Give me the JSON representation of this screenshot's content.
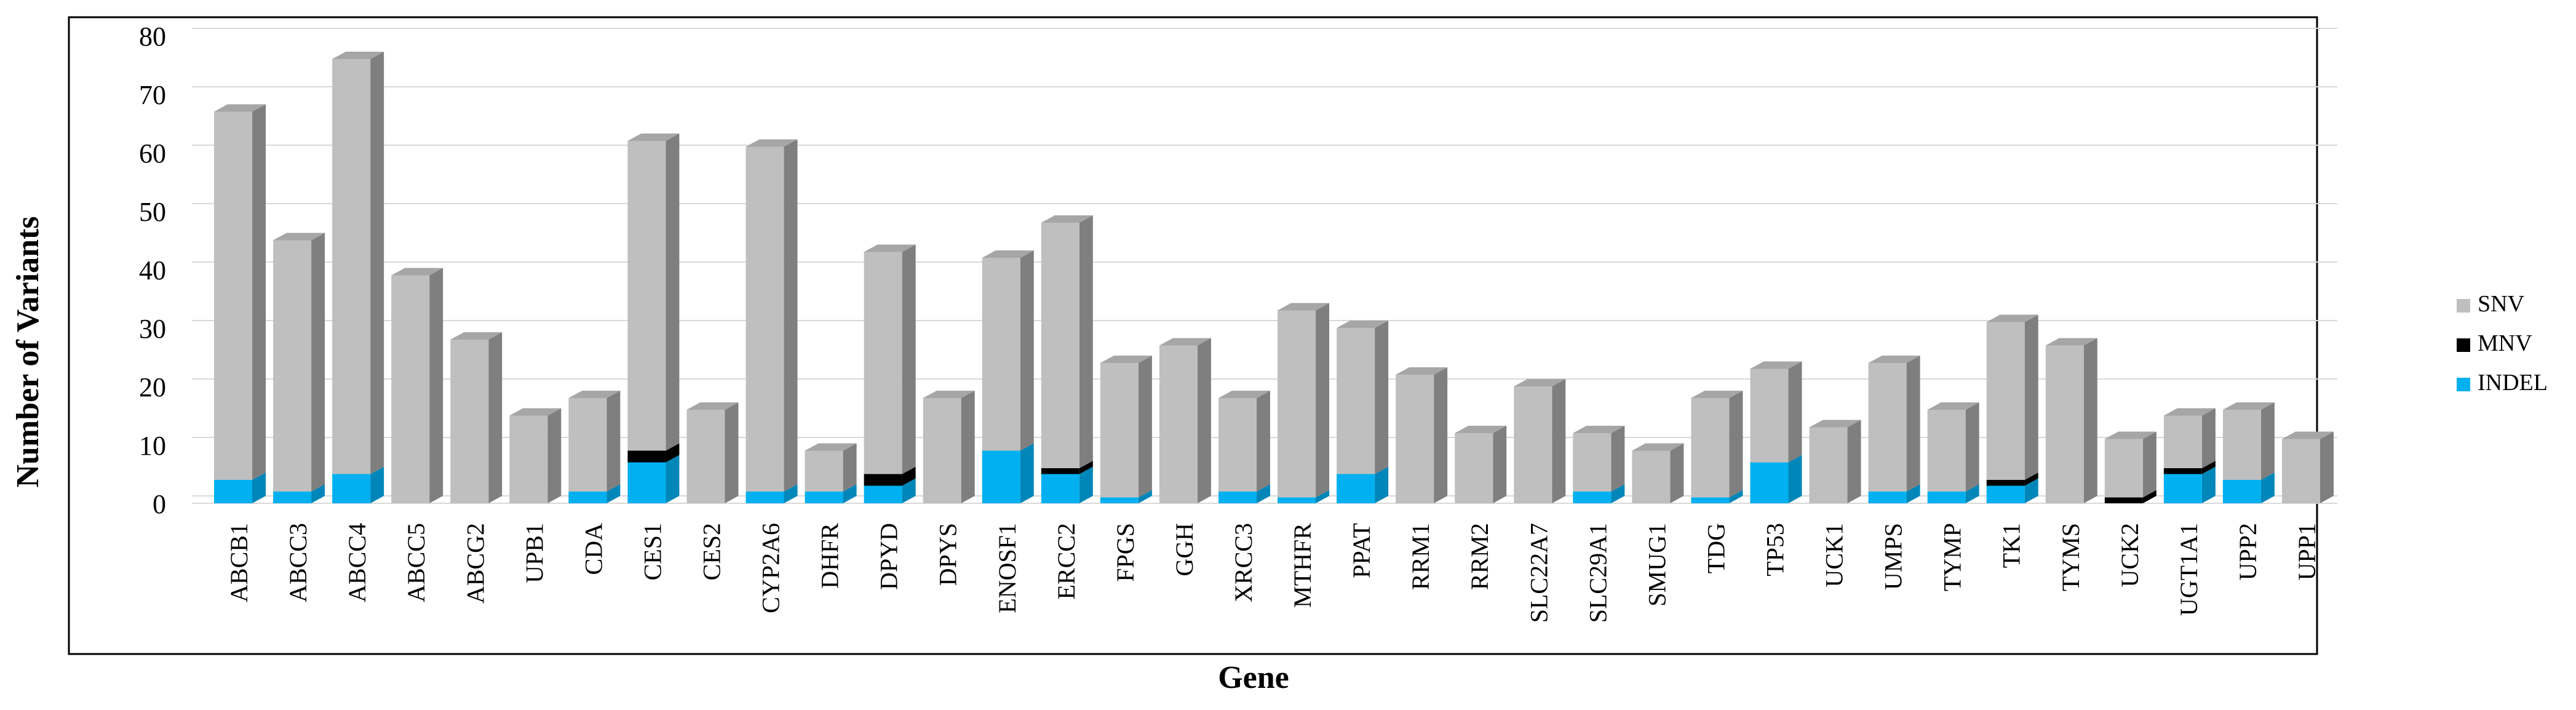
{
  "chart_data": {
    "type": "bar",
    "stacked": true,
    "style": "3d-column",
    "title": "",
    "xlabel": "Gene",
    "ylabel": "Number of Variants",
    "ylim": [
      0,
      80
    ],
    "yticks": [
      0,
      10,
      20,
      30,
      40,
      50,
      60,
      70,
      80
    ],
    "grid": true,
    "legend_position": "right",
    "categories": [
      "ABCB1",
      "ABCC3",
      "ABCC4",
      "ABCC5",
      "ABCG2",
      "UPB1",
      "CDA",
      "CES1",
      "CES2",
      "CYP2A6",
      "DHFR",
      "DPYD",
      "DPYS",
      "ENOSF1",
      "ERCC2",
      "FPGS",
      "GGH",
      "XRCC3",
      "MTHFR",
      "PPAT",
      "RRM1",
      "RRM2",
      "SLC22A7",
      "SLC29A1",
      "SMUG1",
      "TDG",
      "TP53",
      "UCK1",
      "UMPS",
      "TYMP",
      "TK1",
      "TYMS",
      "UCK2",
      "UGT1A1",
      "UPP2",
      "UPP1"
    ],
    "series": [
      {
        "name": "INDEL",
        "color": "#00b0f0",
        "values": [
          4,
          2,
          5,
          0,
          0,
          0,
          2,
          7,
          0,
          2,
          2,
          3,
          0,
          9,
          5,
          1,
          0,
          2,
          1,
          5,
          0,
          0,
          0,
          2,
          0,
          1,
          7,
          0,
          2,
          2,
          3,
          0,
          0,
          5,
          4,
          0
        ]
      },
      {
        "name": "MNV",
        "color": "#000000",
        "values": [
          0,
          0,
          0,
          0,
          0,
          0,
          0,
          2,
          0,
          0,
          0,
          2,
          0,
          0,
          1,
          0,
          0,
          0,
          0,
          0,
          0,
          0,
          0,
          0,
          0,
          0,
          0,
          0,
          0,
          0,
          1,
          0,
          1,
          1,
          0,
          0
        ]
      },
      {
        "name": "SNV",
        "color": "#bfbfbf",
        "values": [
          63,
          43,
          71,
          39,
          28,
          15,
          16,
          53,
          16,
          59,
          7,
          38,
          18,
          33,
          42,
          23,
          27,
          16,
          32,
          25,
          22,
          12,
          20,
          10,
          9,
          17,
          16,
          13,
          22,
          14,
          27,
          27,
          10,
          9,
          12,
          11
        ]
      }
    ],
    "legend_order": [
      "SNV",
      "MNV",
      "INDEL"
    ]
  }
}
